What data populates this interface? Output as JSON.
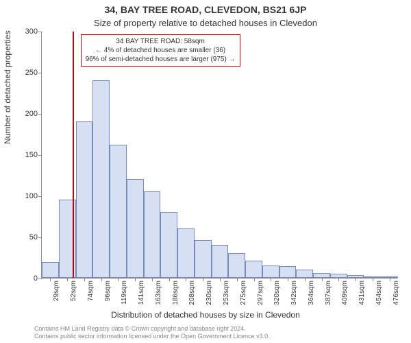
{
  "title_main": "34, BAY TREE ROAD, CLEVEDON, BS21 6JP",
  "title_sub": "Size of property relative to detached houses in Clevedon",
  "ylabel": "Number of detached properties",
  "xlabel": "Distribution of detached houses by size in Clevedon",
  "attribution_line1": "Contains HM Land Registry data © Crown copyright and database right 2024.",
  "attribution_line2": "Contains public sector information licensed under the Open Government Licence v3.0.",
  "chart": {
    "type": "histogram",
    "y": {
      "min": 0,
      "max": 300,
      "ticks": [
        0,
        50,
        100,
        150,
        200,
        250,
        300
      ]
    },
    "x": {
      "categories": [
        "29sqm",
        "52sqm",
        "74sqm",
        "96sqm",
        "119sqm",
        "141sqm",
        "163sqm",
        "186sqm",
        "208sqm",
        "230sqm",
        "253sqm",
        "275sqm",
        "297sqm",
        "320sqm",
        "342sqm",
        "364sqm",
        "387sqm",
        "409sqm",
        "431sqm",
        "454sqm",
        "476sqm"
      ]
    },
    "bars": [
      19,
      95,
      190,
      240,
      162,
      120,
      105,
      80,
      60,
      46,
      40,
      30,
      21,
      15,
      14,
      10,
      6,
      5,
      3,
      2,
      1
    ],
    "bar_fill": "#d6e0f5",
    "bar_stroke": "#7a8ab8",
    "background": "#ffffff",
    "axis_color": "#888888",
    "marker": {
      "category_index": 1.3,
      "color": "#cc0000"
    },
    "annotation": {
      "line1": "34 BAY TREE ROAD: 58sqm",
      "line2": "← 4% of detached houses are smaller (36)",
      "line3": "96% of semi-detached houses are larger (975) →",
      "border_color": "#cc0000",
      "bg": "#ffffff",
      "fontsize": 10
    }
  }
}
